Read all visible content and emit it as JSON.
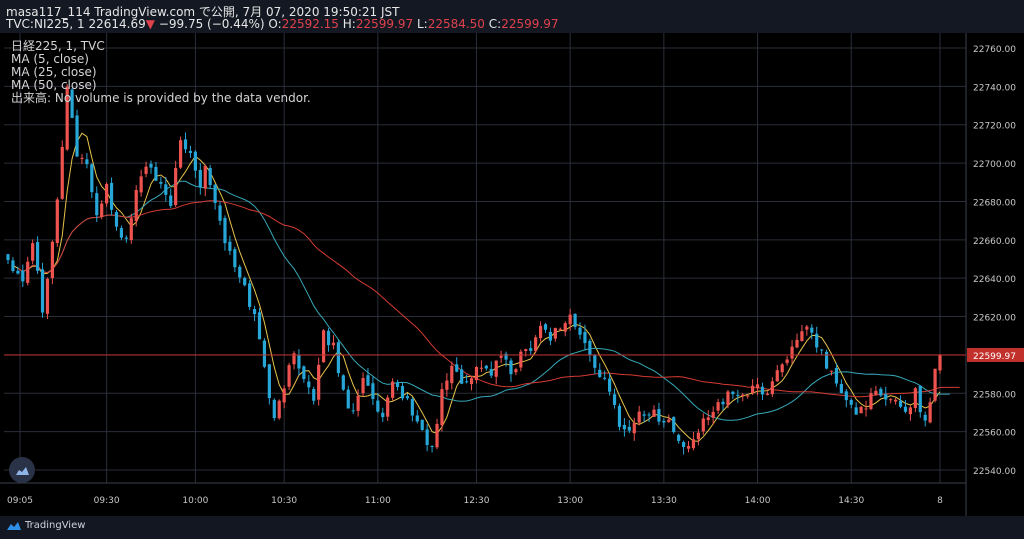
{
  "header": {
    "line1": "masa117_114 TradingView.com で公開, 7月 07, 2020 19:50:21 JST",
    "symbol": "TVC:NI225, 1",
    "last": "22614.69",
    "change_arrow": "▼",
    "change": "−99.75 (−0.44%)",
    "o_label": "O:",
    "o_value": "22592.15",
    "h_label": "H:",
    "h_value": "22599.97",
    "l_label": "L:",
    "l_value": "22584.50",
    "c_label": "C:",
    "c_value": "22599.97"
  },
  "legend": [
    "日経225, 1, TVC",
    "MA (5, close)",
    "MA (25, close)",
    "MA (50, close)",
    "出来高: No volume is provided by the data vendor."
  ],
  "footer": {
    "brand": "TradingView"
  },
  "colors": {
    "up": "#ef5350",
    "down": "#26a7d8",
    "ma5": "#e8c34a",
    "ma25": "#36a9b8",
    "ma50": "#d63b32",
    "grid": "#2a2e39",
    "price_line": "#c2302c"
  },
  "chart_data": {
    "type": "candlestick",
    "y_ticks": [
      22540,
      22560,
      22580,
      22600,
      22620,
      22640,
      22660,
      22680,
      22700,
      22720,
      22740,
      22760
    ],
    "y_tick_labels": [
      "22540.00",
      "22560.00",
      "22580.00",
      "22600.00",
      "22620.00",
      "22640.00",
      "22660.00",
      "22680.00",
      "22700.00",
      "22720.00",
      "22740.00",
      "22760.00"
    ],
    "ylim": [
      22530,
      22772
    ],
    "x_ticks": [
      "09:05",
      "09:30",
      "10:00",
      "10:30",
      "11:00",
      "12:30",
      "13:00",
      "13:30",
      "14:00",
      "14:30",
      "8"
    ],
    "last_price_label": "22599.97",
    "last_price": 22599.97,
    "series": [
      {
        "name": "MA (5, close)"
      },
      {
        "name": "MA (25, close)"
      },
      {
        "name": "MA (50, close)"
      }
    ],
    "anchors": [
      [
        0,
        22650
      ],
      [
        3,
        22640
      ],
      [
        5,
        22660
      ],
      [
        7,
        22625
      ],
      [
        9,
        22660
      ],
      [
        10,
        22680
      ],
      [
        12,
        22740
      ],
      [
        14,
        22705
      ],
      [
        16,
        22700
      ],
      [
        18,
        22670
      ],
      [
        20,
        22690
      ],
      [
        22,
        22665
      ],
      [
        24,
        22660
      ],
      [
        26,
        22685
      ],
      [
        28,
        22700
      ],
      [
        30,
        22690
      ],
      [
        33,
        22680
      ],
      [
        35,
        22710
      ],
      [
        37,
        22705
      ],
      [
        39,
        22690
      ],
      [
        40,
        22700
      ],
      [
        42,
        22680
      ],
      [
        44,
        22660
      ],
      [
        46,
        22645
      ],
      [
        48,
        22635
      ],
      [
        50,
        22620
      ],
      [
        52,
        22595
      ],
      [
        54,
        22565
      ],
      [
        56,
        22585
      ],
      [
        58,
        22600
      ],
      [
        60,
        22590
      ],
      [
        62,
        22575
      ],
      [
        64,
        22610
      ],
      [
        66,
        22605
      ],
      [
        68,
        22580
      ],
      [
        70,
        22570
      ],
      [
        72,
        22590
      ],
      [
        74,
        22575
      ],
      [
        76,
        22565
      ],
      [
        78,
        22585
      ],
      [
        80,
        22580
      ],
      [
        82,
        22570
      ],
      [
        84,
        22560
      ],
      [
        86,
        22550
      ],
      [
        88,
        22580
      ],
      [
        90,
        22595
      ],
      [
        92,
        22585
      ],
      [
        94,
        22590
      ],
      [
        96,
        22595
      ],
      [
        98,
        22590
      ],
      [
        100,
        22600
      ],
      [
        102,
        22590
      ],
      [
        104,
        22600
      ],
      [
        106,
        22605
      ],
      [
        108,
        22615
      ],
      [
        110,
        22610
      ],
      [
        112,
        22615
      ],
      [
        114,
        22620
      ],
      [
        116,
        22610
      ],
      [
        118,
        22600
      ],
      [
        120,
        22590
      ],
      [
        122,
        22580
      ],
      [
        124,
        22565
      ],
      [
        126,
        22560
      ],
      [
        128,
        22570
      ],
      [
        130,
        22570
      ],
      [
        132,
        22568
      ],
      [
        134,
        22565
      ],
      [
        136,
        22555
      ],
      [
        138,
        22550
      ],
      [
        140,
        22560
      ],
      [
        142,
        22570
      ],
      [
        144,
        22575
      ],
      [
        146,
        22578
      ],
      [
        148,
        22580
      ],
      [
        150,
        22580
      ],
      [
        152,
        22583
      ],
      [
        154,
        22580
      ],
      [
        156,
        22592
      ],
      [
        158,
        22600
      ],
      [
        160,
        22605
      ],
      [
        162,
        22615
      ],
      [
        164,
        22605
      ],
      [
        166,
        22595
      ],
      [
        168,
        22585
      ],
      [
        170,
        22575
      ],
      [
        172,
        22570
      ],
      [
        174,
        22575
      ],
      [
        176,
        22580
      ],
      [
        178,
        22575
      ],
      [
        180,
        22578
      ],
      [
        182,
        22570
      ],
      [
        184,
        22580
      ],
      [
        186,
        22565
      ],
      [
        187,
        22578
      ],
      [
        188,
        22592
      ],
      [
        189,
        22600
      ]
    ]
  }
}
